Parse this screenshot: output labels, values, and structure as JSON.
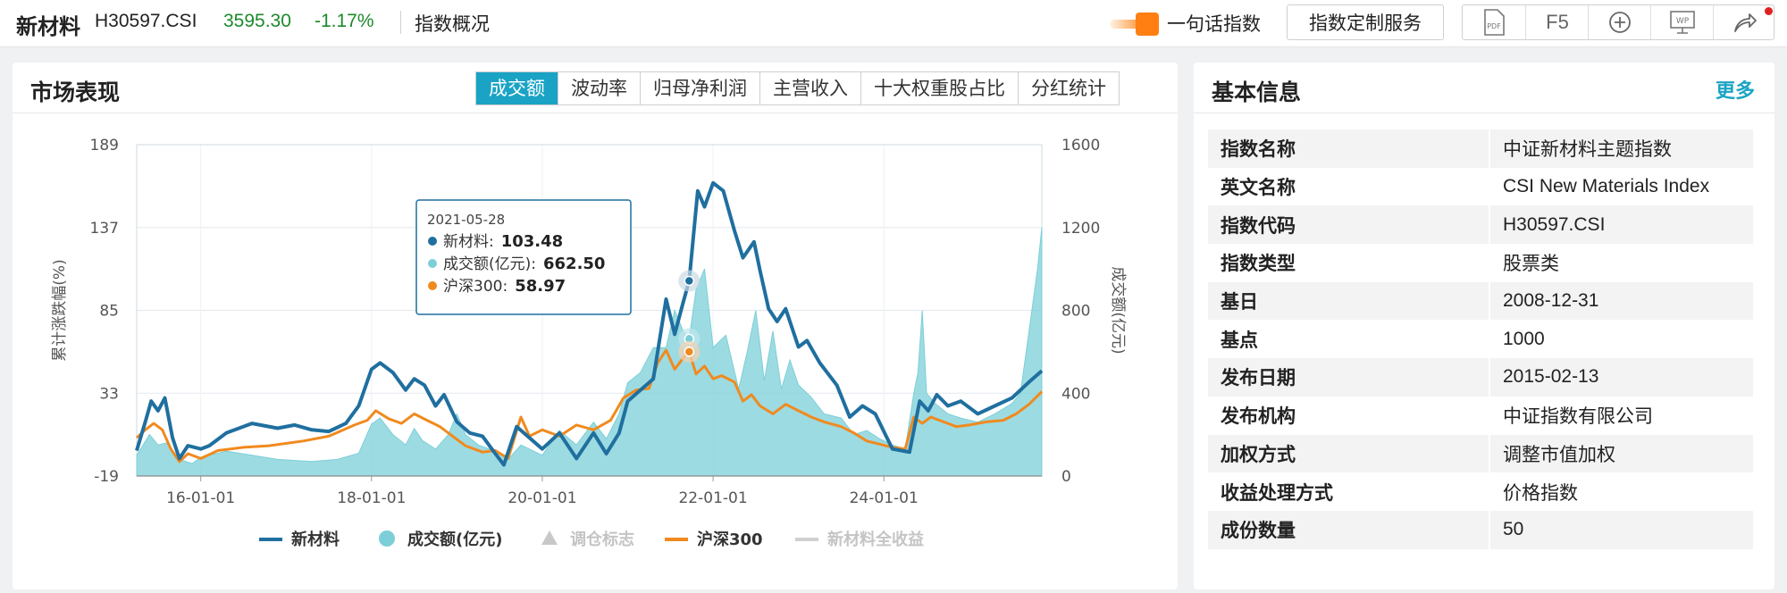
{
  "topbar": {
    "index_name": "新材料",
    "index_code": "H30597.CSI",
    "price": "3595.30",
    "change": "-1.17%",
    "page_title": "指数概况",
    "one_line_label": "一句话指数",
    "custom_service_label": "指数定制服务",
    "tools": [
      {
        "icon": "pdf-icon",
        "label": "PDF"
      },
      {
        "icon": "f5-refresh",
        "label": "F5"
      },
      {
        "icon": "add-icon",
        "label": "⊕"
      },
      {
        "icon": "wp-icon",
        "label": "WP"
      },
      {
        "icon": "share-icon",
        "label": "↗"
      }
    ]
  },
  "market": {
    "title": "市场表现",
    "tabs": [
      "成交额",
      "波动率",
      "归母净利润",
      "主营收入",
      "十大权重股占比",
      "分红统计"
    ],
    "active_tab": 0
  },
  "tooltip": {
    "date": "2021-05-28",
    "rows": [
      {
        "label": "新材料:",
        "value": "103.48",
        "color": "#1f6f9f"
      },
      {
        "label": "成交额(亿元):",
        "value": "662.50",
        "color": "#7ccfd8"
      },
      {
        "label": "沪深300:",
        "value": "58.97",
        "color": "#f08a1e"
      }
    ]
  },
  "chart_data": {
    "type": "line",
    "left_axis_label": "累计涨跌幅(%)",
    "right_axis_label": "成交额(亿元)",
    "left_ticks": [
      "189",
      "137",
      "85",
      "33",
      "-19"
    ],
    "right_ticks": [
      "1600",
      "1200",
      "800",
      "400",
      "0"
    ],
    "ylim_left": [
      -19,
      189
    ],
    "ylim_right": [
      0,
      1600
    ],
    "x_ticks": [
      "16-01-01",
      "18-01-01",
      "20-01-01",
      "22-01-01",
      "24-01-01"
    ],
    "x_tick_years": [
      2016,
      2018,
      2020,
      2022,
      2024
    ],
    "x_range_years": [
      2015.25,
      2025.85
    ],
    "legend": [
      {
        "label": "新材料",
        "type": "line",
        "color": "#1f6f9f",
        "active": true
      },
      {
        "label": "成交额(亿元)",
        "type": "circle",
        "color": "#7ccfd8",
        "active": true
      },
      {
        "label": "调仓标志",
        "type": "triangle",
        "color": "#c8c8c8",
        "active": false
      },
      {
        "label": "沪深300",
        "type": "line",
        "color": "#f08a1e",
        "active": true
      },
      {
        "label": "新材料全收益",
        "type": "line",
        "color": "#d0d0d0",
        "active": false
      }
    ],
    "series": [
      {
        "name": "新材料",
        "color": "#1f6f9f",
        "points": [
          [
            2015.25,
            -3
          ],
          [
            2015.35,
            15
          ],
          [
            2015.42,
            28
          ],
          [
            2015.5,
            22
          ],
          [
            2015.58,
            30
          ],
          [
            2015.67,
            5
          ],
          [
            2015.75,
            -8
          ],
          [
            2015.85,
            0
          ],
          [
            2016.0,
            -2
          ],
          [
            2016.1,
            0
          ],
          [
            2016.3,
            8
          ],
          [
            2016.6,
            14
          ],
          [
            2016.9,
            11
          ],
          [
            2017.1,
            13
          ],
          [
            2017.3,
            10
          ],
          [
            2017.5,
            9
          ],
          [
            2017.7,
            14
          ],
          [
            2017.85,
            25
          ],
          [
            2018.0,
            48
          ],
          [
            2018.1,
            52
          ],
          [
            2018.25,
            46
          ],
          [
            2018.4,
            35
          ],
          [
            2018.5,
            42
          ],
          [
            2018.62,
            38
          ],
          [
            2018.75,
            25
          ],
          [
            2018.85,
            32
          ],
          [
            2019.0,
            15
          ],
          [
            2019.15,
            8
          ],
          [
            2019.3,
            6
          ],
          [
            2019.45,
            -5
          ],
          [
            2019.55,
            -12
          ],
          [
            2019.7,
            12
          ],
          [
            2019.85,
            5
          ],
          [
            2020.0,
            -2
          ],
          [
            2020.2,
            8
          ],
          [
            2020.4,
            -8
          ],
          [
            2020.6,
            8
          ],
          [
            2020.75,
            -5
          ],
          [
            2020.9,
            8
          ],
          [
            2021.0,
            28
          ],
          [
            2021.15,
            35
          ],
          [
            2021.3,
            42
          ],
          [
            2021.45,
            92
          ],
          [
            2021.55,
            70
          ],
          [
            2021.65,
            90
          ],
          [
            2021.72,
            103.48
          ],
          [
            2021.82,
            160
          ],
          [
            2021.9,
            150
          ],
          [
            2022.0,
            165
          ],
          [
            2022.12,
            160
          ],
          [
            2022.25,
            135
          ],
          [
            2022.35,
            118
          ],
          [
            2022.48,
            128
          ],
          [
            2022.55,
            110
          ],
          [
            2022.65,
            86
          ],
          [
            2022.75,
            78
          ],
          [
            2022.85,
            86
          ],
          [
            2023.0,
            62
          ],
          [
            2023.1,
            66
          ],
          [
            2023.25,
            52
          ],
          [
            2023.45,
            38
          ],
          [
            2023.6,
            18
          ],
          [
            2023.75,
            25
          ],
          [
            2023.9,
            20
          ],
          [
            2024.1,
            -2
          ],
          [
            2024.3,
            -4
          ],
          [
            2024.42,
            28
          ],
          [
            2024.52,
            22
          ],
          [
            2024.62,
            32
          ],
          [
            2024.75,
            25
          ],
          [
            2024.9,
            28
          ],
          [
            2025.1,
            20
          ],
          [
            2025.3,
            25
          ],
          [
            2025.5,
            30
          ],
          [
            2025.7,
            40
          ],
          [
            2025.85,
            47
          ]
        ]
      },
      {
        "name": "成交额(亿元)",
        "color": "#7ccfd8",
        "points": [
          [
            2015.25,
            100
          ],
          [
            2015.4,
            200
          ],
          [
            2015.5,
            150
          ],
          [
            2015.6,
            160
          ],
          [
            2015.75,
            80
          ],
          [
            2015.9,
            60
          ],
          [
            2016.0,
            90
          ],
          [
            2016.3,
            120
          ],
          [
            2016.6,
            100
          ],
          [
            2016.9,
            80
          ],
          [
            2017.3,
            70
          ],
          [
            2017.6,
            80
          ],
          [
            2017.85,
            110
          ],
          [
            2018.0,
            250
          ],
          [
            2018.1,
            280
          ],
          [
            2018.25,
            200
          ],
          [
            2018.4,
            150
          ],
          [
            2018.5,
            230
          ],
          [
            2018.6,
            170
          ],
          [
            2018.75,
            130
          ],
          [
            2018.9,
            200
          ],
          [
            2019.0,
            300
          ],
          [
            2019.1,
            200
          ],
          [
            2019.25,
            150
          ],
          [
            2019.45,
            120
          ],
          [
            2019.6,
            80
          ],
          [
            2019.75,
            150
          ],
          [
            2019.9,
            120
          ],
          [
            2020.0,
            100
          ],
          [
            2020.2,
            220
          ],
          [
            2020.4,
            150
          ],
          [
            2020.6,
            260
          ],
          [
            2020.75,
            180
          ],
          [
            2020.9,
            300
          ],
          [
            2021.0,
            450
          ],
          [
            2021.15,
            500
          ],
          [
            2021.3,
            620
          ],
          [
            2021.45,
            620
          ],
          [
            2021.55,
            800
          ],
          [
            2021.65,
            700
          ],
          [
            2021.72,
            662.5
          ],
          [
            2021.8,
            900
          ],
          [
            2021.9,
            1000
          ],
          [
            2022.0,
            620
          ],
          [
            2022.15,
            680
          ],
          [
            2022.3,
            420
          ],
          [
            2022.4,
            600
          ],
          [
            2022.5,
            800
          ],
          [
            2022.6,
            460
          ],
          [
            2022.7,
            700
          ],
          [
            2022.8,
            420
          ],
          [
            2022.9,
            560
          ],
          [
            2023.0,
            440
          ],
          [
            2023.15,
            380
          ],
          [
            2023.3,
            300
          ],
          [
            2023.5,
            280
          ],
          [
            2023.65,
            200
          ],
          [
            2023.8,
            220
          ],
          [
            2023.95,
            180
          ],
          [
            2024.1,
            150
          ],
          [
            2024.25,
            130
          ],
          [
            2024.35,
            400
          ],
          [
            2024.4,
            500
          ],
          [
            2024.45,
            800
          ],
          [
            2024.5,
            400
          ],
          [
            2024.6,
            350
          ],
          [
            2024.75,
            300
          ],
          [
            2024.9,
            280
          ],
          [
            2025.1,
            260
          ],
          [
            2025.3,
            300
          ],
          [
            2025.5,
            350
          ],
          [
            2025.6,
            400
          ],
          [
            2025.7,
            700
          ],
          [
            2025.8,
            1000
          ],
          [
            2025.85,
            1200
          ]
        ]
      },
      {
        "name": "沪深300",
        "color": "#f08a1e",
        "points": [
          [
            2015.25,
            5
          ],
          [
            2015.35,
            10
          ],
          [
            2015.45,
            14
          ],
          [
            2015.55,
            10
          ],
          [
            2015.65,
            -2
          ],
          [
            2015.75,
            -10
          ],
          [
            2015.85,
            -5
          ],
          [
            2016.0,
            -8
          ],
          [
            2016.2,
            -3
          ],
          [
            2016.5,
            -1
          ],
          [
            2016.8,
            0
          ],
          [
            2017.2,
            3
          ],
          [
            2017.5,
            6
          ],
          [
            2017.8,
            13
          ],
          [
            2017.95,
            16
          ],
          [
            2018.05,
            22
          ],
          [
            2018.2,
            17
          ],
          [
            2018.35,
            14
          ],
          [
            2018.5,
            20
          ],
          [
            2018.65,
            16
          ],
          [
            2018.8,
            12
          ],
          [
            2018.95,
            6
          ],
          [
            2019.1,
            0
          ],
          [
            2019.3,
            -4
          ],
          [
            2019.45,
            -3
          ],
          [
            2019.6,
            -8
          ],
          [
            2019.75,
            18
          ],
          [
            2019.85,
            6
          ],
          [
            2020.0,
            10
          ],
          [
            2020.2,
            6
          ],
          [
            2020.4,
            13
          ],
          [
            2020.6,
            10
          ],
          [
            2020.8,
            16
          ],
          [
            2020.95,
            30
          ],
          [
            2021.1,
            35
          ],
          [
            2021.25,
            36
          ],
          [
            2021.35,
            52
          ],
          [
            2021.45,
            60
          ],
          [
            2021.55,
            48
          ],
          [
            2021.65,
            55
          ],
          [
            2021.72,
            58.97
          ],
          [
            2021.8,
            45
          ],
          [
            2021.9,
            50
          ],
          [
            2022.0,
            42
          ],
          [
            2022.1,
            44
          ],
          [
            2022.25,
            40
          ],
          [
            2022.35,
            28
          ],
          [
            2022.45,
            32
          ],
          [
            2022.55,
            25
          ],
          [
            2022.7,
            20
          ],
          [
            2022.85,
            26
          ],
          [
            2023.0,
            22
          ],
          [
            2023.15,
            18
          ],
          [
            2023.3,
            15
          ],
          [
            2023.5,
            12
          ],
          [
            2023.65,
            8
          ],
          [
            2023.8,
            3
          ],
          [
            2023.95,
            1
          ],
          [
            2024.1,
            -1
          ],
          [
            2024.25,
            -2
          ],
          [
            2024.35,
            18
          ],
          [
            2024.45,
            14
          ],
          [
            2024.55,
            18
          ],
          [
            2024.7,
            15
          ],
          [
            2024.85,
            12
          ],
          [
            2025.0,
            13
          ],
          [
            2025.2,
            15
          ],
          [
            2025.4,
            16
          ],
          [
            2025.55,
            20
          ],
          [
            2025.7,
            26
          ],
          [
            2025.85,
            34
          ]
        ]
      }
    ]
  },
  "basic_info": {
    "title": "基本信息",
    "more_label": "更多",
    "rows": [
      {
        "key": "指数名称",
        "value": "中证新材料主题指数"
      },
      {
        "key": "英文名称",
        "value": "CSI New Materials Index"
      },
      {
        "key": "指数代码",
        "value": "H30597.CSI"
      },
      {
        "key": "指数类型",
        "value": "股票类"
      },
      {
        "key": "基日",
        "value": "2008-12-31"
      },
      {
        "key": "基点",
        "value": "1000"
      },
      {
        "key": "发布日期",
        "value": "2015-02-13"
      },
      {
        "key": "发布机构",
        "value": "中证指数有限公司"
      },
      {
        "key": "加权方式",
        "value": "调整市值加权"
      },
      {
        "key": "收益处理方式",
        "value": "价格指数"
      },
      {
        "key": "成份数量",
        "value": "50"
      }
    ]
  }
}
